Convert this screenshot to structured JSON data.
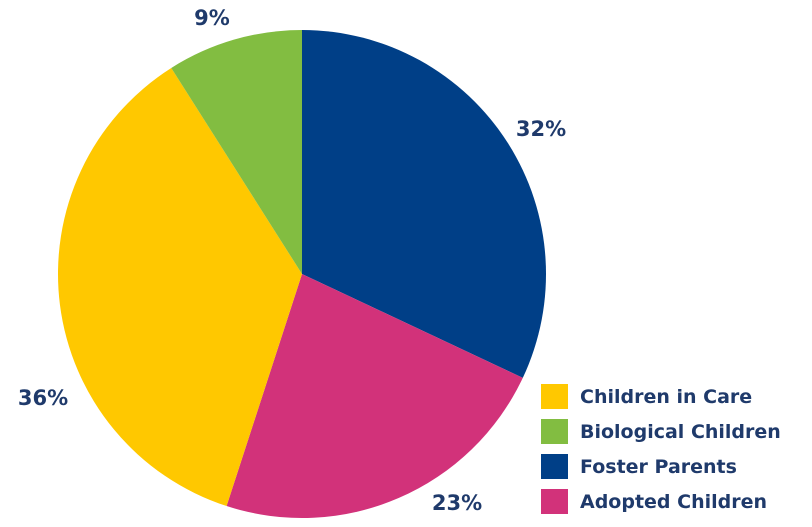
{
  "chart_data": {
    "type": "pie",
    "title": "",
    "slices": [
      {
        "label": "Foster Parents",
        "value": 32,
        "display": "32%",
        "color": "#003f87"
      },
      {
        "label": "Adopted Children",
        "value": 23,
        "display": "23%",
        "color": "#d2327a"
      },
      {
        "label": "Children in Care",
        "value": 36,
        "display": "36%",
        "color": "#ffc800"
      },
      {
        "label": "Biological Children",
        "value": 9,
        "display": "9%",
        "color": "#82bd41"
      }
    ],
    "legend": {
      "placement": "bottom-right",
      "items": [
        "Children in Care",
        "Biological Children",
        "Foster Parents",
        "Adopted Children"
      ]
    }
  }
}
